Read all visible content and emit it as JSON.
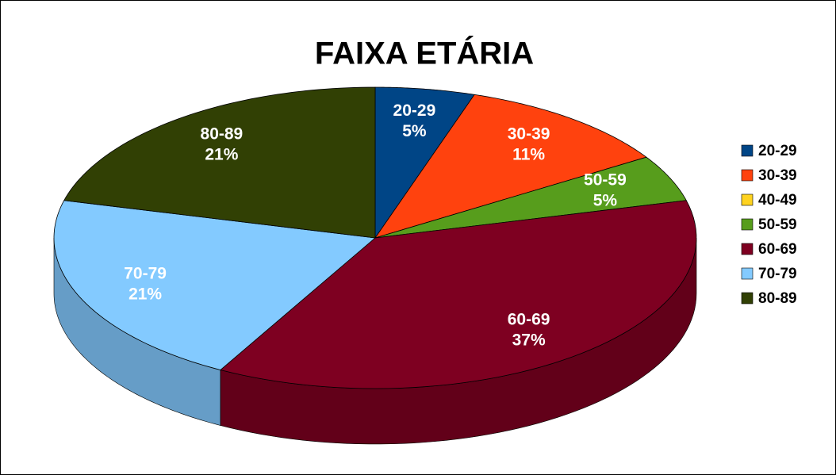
{
  "chart_data": {
    "type": "pie",
    "title": "FAIXA ETÁRIA",
    "categories": [
      "20-29",
      "30-39",
      "40-49",
      "50-59",
      "60-69",
      "70-79",
      "80-89"
    ],
    "values": [
      5,
      11,
      0,
      5,
      37,
      21,
      21
    ],
    "value_labels": [
      "5%",
      "11%",
      null,
      "5%",
      "37%",
      "21%",
      "21%"
    ],
    "colors": [
      "#004586",
      "#ff420e",
      "#ffd320",
      "#579d1c",
      "#7e0021",
      "#83caff",
      "#314004"
    ],
    "legend": "right"
  }
}
